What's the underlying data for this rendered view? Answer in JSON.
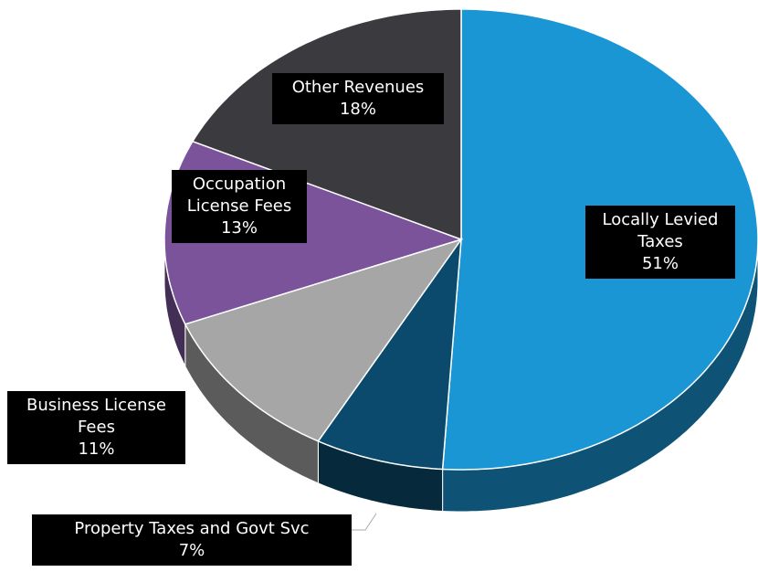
{
  "chart_data": {
    "type": "pie",
    "categories": [
      "Locally Levied Taxes",
      "Property Taxes and Govt Svc",
      "Business License Fees",
      "Occupation License Fees",
      "Other Revenues"
    ],
    "values": [
      51,
      7,
      11,
      13,
      18
    ],
    "value_labels": [
      "51%",
      "7%",
      "11%",
      "13%",
      "18%"
    ],
    "colors": [
      "#1a96d4",
      "#0b4a6d",
      "#a6a6a6",
      "#7a539b",
      "#3b3a3e"
    ]
  }
}
